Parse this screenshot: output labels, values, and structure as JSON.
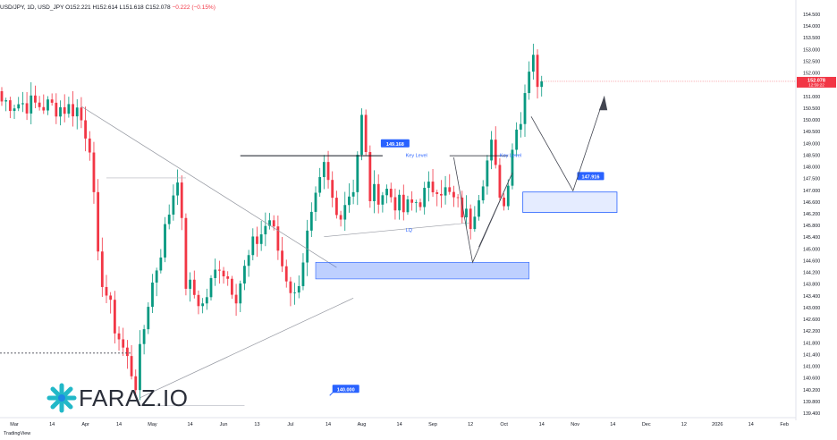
{
  "header": {
    "symbol_line": "USD/JPY, 1D, USD_JPY",
    "open": "O152.221",
    "high": "H152.614",
    "low": "L151.618",
    "close": "C152.078",
    "change": "−0.222 (−0.15%)"
  },
  "brand": {
    "name": "FARAZ.IO",
    "icon": "starburst-logo-icon"
  },
  "footer": {
    "credit": "TradingView"
  },
  "colors": {
    "up": "#089981",
    "down": "#f23645",
    "zone": "#2962ff",
    "line": "#131722",
    "label": "#2962ff"
  },
  "chart_data": {
    "type": "candlestick",
    "title": "",
    "xlabel": "",
    "ylabel": "",
    "ylim": [
      139.1,
      154.7
    ],
    "y_ticks": [
      "154.500",
      "154.000",
      "153.500",
      "153.000",
      "152.500",
      "152.000",
      "151.500",
      "151.000",
      "150.500",
      "150.000",
      "149.500",
      "149.000",
      "148.500",
      "148.000",
      "147.500",
      "147.000",
      "146.600",
      "146.200",
      "145.800",
      "145.400",
      "145.000",
      "144.600",
      "144.200",
      "143.800",
      "143.400",
      "143.000",
      "142.600",
      "142.200",
      "141.800",
      "141.400",
      "141.000",
      "140.600",
      "140.200",
      "139.800",
      "139.400"
    ],
    "x_ticks": [
      {
        "label": "Mar",
        "index": 3
      },
      {
        "label": "14",
        "index": 12
      },
      {
        "label": "Apr",
        "index": 20
      },
      {
        "label": "14",
        "index": 28
      },
      {
        "label": "May",
        "index": 36
      },
      {
        "label": "14",
        "index": 45
      },
      {
        "label": "Jun",
        "index": 53
      },
      {
        "label": "13",
        "index": 61
      },
      {
        "label": "Jul",
        "index": 69
      },
      {
        "label": "14",
        "index": 78
      },
      {
        "label": "Aug",
        "index": 86
      },
      {
        "label": "14",
        "index": 95
      },
      {
        "label": "Sep",
        "index": 103
      },
      {
        "label": "12",
        "index": 112
      },
      {
        "label": "Oct",
        "index": 120
      },
      {
        "label": "14",
        "index": 129
      },
      {
        "label": "Nov",
        "index": 137
      },
      {
        "label": "14",
        "index": 146
      },
      {
        "label": "Dec",
        "index": 154
      },
      {
        "label": "12",
        "index": 163
      },
      {
        "label": "2026",
        "index": 171
      },
      {
        "label": "14",
        "index": 179
      },
      {
        "label": "Feb",
        "index": 187
      }
    ],
    "price_badge": {
      "value": "152.078",
      "sub": "12:59:22"
    },
    "key_points": [
      {
        "index": 0,
        "price": 151.3
      },
      {
        "index": 18,
        "price": 151.0
      },
      {
        "index": 21,
        "price": 149.7
      },
      {
        "index": 23,
        "price": 145.0
      },
      {
        "index": 27,
        "price": 142.5
      },
      {
        "index": 32,
        "price": 140.3
      },
      {
        "index": 35,
        "price": 143.5
      },
      {
        "index": 38,
        "price": 145.5
      },
      {
        "index": 42,
        "price": 148.5
      },
      {
        "index": 44,
        "price": 144.2
      },
      {
        "index": 48,
        "price": 143.3
      },
      {
        "index": 52,
        "price": 145.0
      },
      {
        "index": 56,
        "price": 143.8
      },
      {
        "index": 60,
        "price": 145.6
      },
      {
        "index": 64,
        "price": 146.7
      },
      {
        "index": 67,
        "price": 144.9
      },
      {
        "index": 70,
        "price": 143.6
      },
      {
        "index": 73,
        "price": 146.0
      },
      {
        "index": 77,
        "price": 148.6
      },
      {
        "index": 80,
        "price": 146.8
      },
      {
        "index": 84,
        "price": 148.0
      },
      {
        "index": 86,
        "price": 150.6
      },
      {
        "index": 88,
        "price": 147.6
      },
      {
        "index": 92,
        "price": 147.8
      },
      {
        "index": 96,
        "price": 147.0
      },
      {
        "index": 100,
        "price": 147.5
      },
      {
        "index": 104,
        "price": 148.1
      },
      {
        "index": 108,
        "price": 147.4
      },
      {
        "index": 112,
        "price": 146.6
      },
      {
        "index": 115,
        "price": 148.4
      },
      {
        "index": 117,
        "price": 149.5
      },
      {
        "index": 118,
        "price": 148.5
      },
      {
        "index": 120,
        "price": 147.2
      },
      {
        "index": 122,
        "price": 149.6
      },
      {
        "index": 124,
        "price": 150.8
      },
      {
        "index": 126,
        "price": 152.7
      },
      {
        "index": 127,
        "price": 153.3
      },
      {
        "index": 128,
        "price": 151.6
      },
      {
        "index": 129,
        "price": 152.078
      }
    ],
    "annotations": {
      "key_level_1": {
        "label": "149.168",
        "text": "Key Level",
        "price": 149.17,
        "from": 32,
        "to": 61
      },
      "key_level_2": {
        "text": "Key Level",
        "price": 149.17,
        "from": 75,
        "to": 93
      },
      "zone_lower": {
        "top": 145.0,
        "bottom": 144.35,
        "from": 41,
        "to": 93
      },
      "zone_upper": {
        "label": "147.916",
        "top": 147.9,
        "bottom": 147.1,
        "from": 100,
        "to": 108
      },
      "lq": {
        "text": "LQ"
      },
      "support": {
        "label": "140.000",
        "price": 140.0
      }
    }
  }
}
